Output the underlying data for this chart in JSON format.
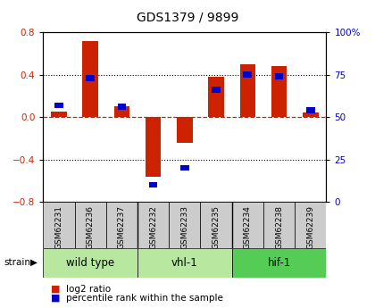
{
  "title": "GDS1379 / 9899",
  "samples": [
    "GSM62231",
    "GSM62236",
    "GSM62237",
    "GSM62232",
    "GSM62233",
    "GSM62235",
    "GSM62234",
    "GSM62238",
    "GSM62239"
  ],
  "log2_ratio": [
    0.05,
    0.72,
    0.1,
    -0.56,
    -0.24,
    0.38,
    0.5,
    0.48,
    0.04
  ],
  "percentile_rank": [
    57,
    73,
    56,
    10,
    20,
    66,
    75,
    74,
    54
  ],
  "group_labels": [
    "wild type",
    "vhl-1",
    "hif-1"
  ],
  "group_starts": [
    0,
    3,
    6
  ],
  "group_ends": [
    3,
    6,
    9
  ],
  "group_colors": [
    "#b8e8a0",
    "#b8e8a0",
    "#55cc55"
  ],
  "ylim_left": [
    -0.8,
    0.8
  ],
  "ylim_right": [
    0,
    100
  ],
  "yticks_left": [
    -0.8,
    -0.4,
    0.0,
    0.4,
    0.8
  ],
  "yticks_right": [
    0,
    25,
    50,
    75,
    100
  ],
  "bar_width": 0.5,
  "log2_color": "#cc2200",
  "percentile_color": "#0000cc",
  "zero_line_color": "#cc2200",
  "sample_box_color": "#cccccc",
  "title_fontsize": 10,
  "tick_fontsize": 7.5,
  "sample_fontsize": 6.5,
  "group_fontsize": 8.5,
  "legend_fontsize": 7.5
}
